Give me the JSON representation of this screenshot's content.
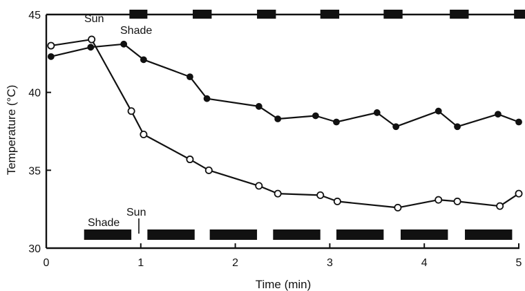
{
  "chart_data": {
    "type": "line",
    "xlabel": "Time (min)",
    "ylabel": "Temperature (°C)",
    "xlim": [
      0,
      5.05
    ],
    "ylim": [
      30,
      45
    ],
    "x_ticks": [
      0,
      1,
      2,
      3,
      4,
      5
    ],
    "y_ticks": [
      30,
      35,
      40,
      45
    ],
    "grid": false,
    "legend": "none",
    "colors": {
      "ink": "#111111",
      "open_fill": "#ffffff"
    },
    "series": [
      {
        "marker": "filled-circle",
        "x": [
          0.05,
          0.47,
          0.82,
          1.03,
          1.52,
          1.7,
          2.25,
          2.45,
          2.85,
          3.07,
          3.5,
          3.7,
          4.15,
          4.35,
          4.78,
          5.0
        ],
        "y": [
          42.3,
          42.9,
          43.1,
          42.1,
          41.0,
          39.6,
          39.1,
          38.3,
          38.5,
          38.1,
          38.7,
          37.8,
          38.8,
          37.8,
          38.6,
          38.1
        ]
      },
      {
        "marker": "open-circle",
        "x": [
          0.05,
          0.48,
          0.9,
          1.03,
          1.52,
          1.72,
          2.25,
          2.45,
          2.9,
          3.08,
          3.72,
          4.15,
          4.35,
          4.8,
          5.0
        ],
        "y": [
          43.0,
          43.4,
          38.8,
          37.3,
          35.7,
          35.0,
          34.0,
          33.5,
          33.4,
          33.0,
          32.6,
          33.1,
          33.0,
          32.7,
          33.5
        ]
      }
    ],
    "top_bars": [
      [
        0.88,
        1.07
      ],
      [
        1.55,
        1.75
      ],
      [
        2.23,
        2.43
      ],
      [
        2.9,
        3.1
      ],
      [
        3.57,
        3.77
      ],
      [
        4.27,
        4.47
      ],
      [
        4.95,
        5.1
      ]
    ],
    "bottom_bars": [
      [
        0.4,
        0.9
      ],
      [
        1.07,
        1.57
      ],
      [
        1.73,
        2.23
      ],
      [
        2.4,
        2.9
      ],
      [
        3.07,
        3.57
      ],
      [
        3.75,
        4.25
      ],
      [
        4.43,
        4.93
      ]
    ],
    "annotations": {
      "top_sun": "Sun",
      "top_shade": "Shade",
      "bottom_shade": "Shade",
      "bottom_sun": "Sun"
    }
  }
}
